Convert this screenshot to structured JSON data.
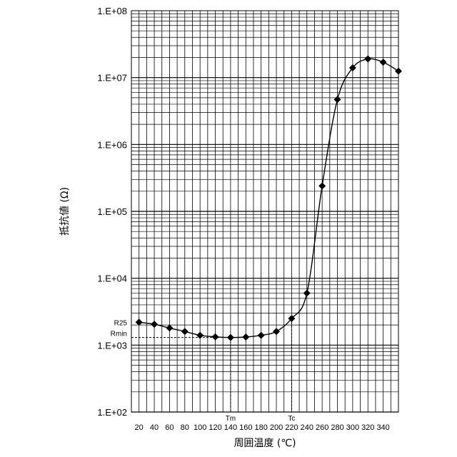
{
  "chart_data": {
    "type": "line",
    "xlabel": "周囲温度 (℃)",
    "ylabel": "抵抗値 (Ω)",
    "yscale": "log",
    "ylim": [
      100,
      100000000
    ],
    "xlim": [
      10,
      360
    ],
    "grid": true,
    "y_ticks": [
      "1.E+02",
      "1.E+03",
      "1.E+04",
      "1.E+05",
      "1.E+06",
      "1.E+07",
      "1.E+08"
    ],
    "x_ticks": [
      20,
      40,
      60,
      80,
      100,
      120,
      140,
      160,
      180,
      200,
      220,
      240,
      260,
      280,
      300,
      320,
      340
    ],
    "series": [
      {
        "x": [
          20,
          40,
          60,
          80,
          100,
          120,
          140,
          160,
          180,
          200,
          220,
          240,
          260,
          280,
          300,
          320,
          340,
          360
        ],
        "values": [
          2200,
          2050,
          1800,
          1600,
          1400,
          1330,
          1300,
          1320,
          1400,
          1600,
          2500,
          6000,
          240000,
          4700000,
          14000000,
          19000000,
          17000000,
          12500000
        ]
      }
    ],
    "annotations": [
      {
        "label": "R25",
        "x": 20,
        "y": 2200
      },
      {
        "label": "Rmin",
        "x": 140,
        "y": 1300
      },
      {
        "label": "Tm",
        "x": 140
      },
      {
        "label": "Tc",
        "x": 220,
        "y": 2500
      }
    ]
  }
}
